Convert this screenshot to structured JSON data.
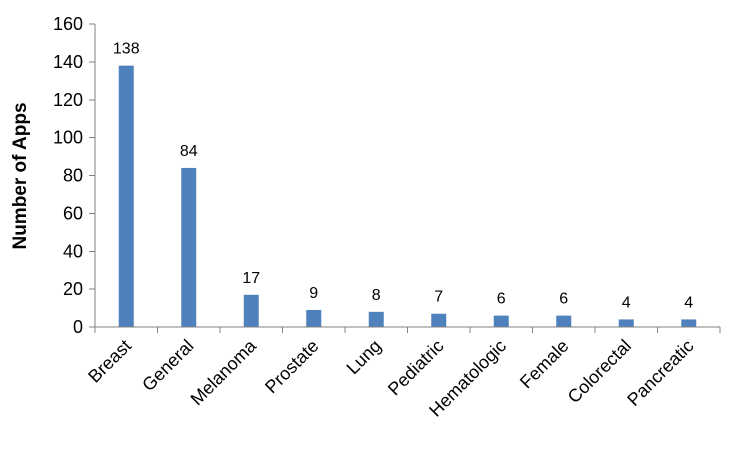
{
  "chart_data": {
    "type": "bar",
    "title": "",
    "xlabel": "",
    "ylabel": "Number of Apps",
    "ylim": [
      0,
      160
    ],
    "yticks": [
      0,
      20,
      40,
      60,
      80,
      100,
      120,
      140,
      160
    ],
    "grid": false,
    "legend": "none",
    "bar_color": "#4F81BD",
    "categories": [
      "Breast",
      "General",
      "Melanoma",
      "Prostate",
      "Lung",
      "Pediatric",
      "Hematologic",
      "Female",
      "Colorectal",
      "Pancreatic"
    ],
    "values": [
      138,
      84,
      17,
      9,
      8,
      7,
      6,
      6,
      4,
      4
    ],
    "data_labels": [
      "138",
      "84",
      "17",
      "9",
      "8",
      "7",
      "6",
      "6",
      "4",
      "4"
    ]
  }
}
